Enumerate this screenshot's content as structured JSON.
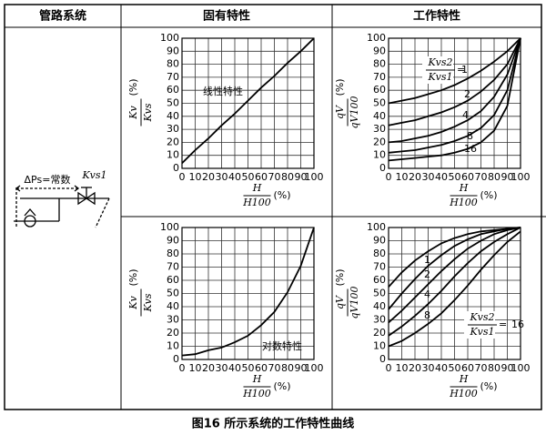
{
  "table": {
    "headers": [
      "管路系统",
      "固有特性",
      "工作特性"
    ]
  },
  "pipe_system": {
    "pressure_label": "ΔPs=常数",
    "valve_label": "Kvs1"
  },
  "chart_data": [
    {
      "type": "line",
      "x": [
        0,
        10,
        20,
        30,
        40,
        50,
        60,
        70,
        80,
        90,
        100
      ],
      "series": [
        {
          "color": "#000000",
          "values": [
            4,
            14,
            23,
            33,
            42,
            52,
            62,
            71,
            81,
            90,
            100
          ]
        }
      ],
      "xlim": [
        0,
        100
      ],
      "ylim": [
        0,
        100
      ],
      "xticks": [
        0,
        10,
        20,
        30,
        40,
        50,
        60,
        70,
        80,
        90,
        100
      ],
      "yticks": [
        0,
        10,
        20,
        30,
        40,
        50,
        60,
        70,
        80,
        90,
        100
      ],
      "grid": true,
      "xlabel": {
        "numerator": "H",
        "denominator": "H100",
        "unit": "(%)"
      },
      "ylabel": {
        "numerator": "Kv",
        "denominator": "Kvs",
        "unit": "(%)"
      },
      "annotation": "线性特性"
    },
    {
      "type": "line",
      "x": [
        0,
        10,
        20,
        30,
        40,
        50,
        60,
        70,
        80,
        90,
        100
      ],
      "series": [
        {
          "color": "#000000",
          "values": [
            3,
            4,
            7,
            9,
            13,
            18,
            26,
            36,
            51,
            71,
            100
          ]
        }
      ],
      "xlim": [
        0,
        100
      ],
      "ylim": [
        0,
        100
      ],
      "xticks": [
        0,
        10,
        20,
        30,
        40,
        50,
        60,
        70,
        80,
        90,
        100
      ],
      "yticks": [
        0,
        10,
        20,
        30,
        40,
        50,
        60,
        70,
        80,
        90,
        100
      ],
      "grid": true,
      "xlabel": {
        "numerator": "H",
        "denominator": "H100",
        "unit": "(%)"
      },
      "ylabel": {
        "numerator": "Kv",
        "denominator": "Kvs",
        "unit": "(%)"
      },
      "annotation": "对数特性"
    },
    {
      "type": "line",
      "x": [
        0,
        10,
        20,
        30,
        40,
        50,
        60,
        70,
        80,
        90,
        100
      ],
      "series": [
        {
          "name": "1",
          "color": "#000000",
          "values": [
            50,
            52,
            54,
            57,
            60,
            64,
            69,
            75,
            82,
            90,
            100
          ]
        },
        {
          "name": "2",
          "color": "#000000",
          "values": [
            33,
            35,
            37,
            40,
            43,
            47,
            52,
            59,
            68,
            80,
            100
          ]
        },
        {
          "name": "4",
          "color": "#000000",
          "values": [
            20,
            21,
            23,
            25,
            28,
            32,
            37,
            44,
            55,
            72,
            100
          ]
        },
        {
          "name": "8",
          "color": "#000000",
          "values": [
            12,
            13,
            14,
            16,
            18,
            21,
            25,
            31,
            41,
            60,
            100
          ]
        },
        {
          "name": "16",
          "color": "#000000",
          "values": [
            6,
            7,
            8,
            9,
            10,
            12,
            15,
            20,
            29,
            48,
            100
          ]
        }
      ],
      "xlim": [
        0,
        100
      ],
      "ylim": [
        0,
        100
      ],
      "xticks": [
        0,
        10,
        20,
        30,
        40,
        50,
        60,
        70,
        80,
        90,
        100
      ],
      "yticks": [
        0,
        10,
        20,
        30,
        40,
        50,
        60,
        70,
        80,
        90,
        100
      ],
      "grid": true,
      "xlabel": {
        "numerator": "H",
        "denominator": "H100",
        "unit": "(%)"
      },
      "ylabel": {
        "numerator": "qV",
        "denominator": "qV100",
        "unit": "(%)"
      },
      "annotation": {
        "numerator": "Kvs2",
        "denominator": "Kvs1",
        "relation": "="
      }
    },
    {
      "type": "line",
      "x": [
        0,
        10,
        20,
        30,
        40,
        50,
        60,
        70,
        80,
        90,
        100
      ],
      "series": [
        {
          "name": "1",
          "color": "#000000",
          "values": [
            55,
            66,
            75,
            82,
            88,
            92,
            95,
            97,
            98,
            99,
            100
          ]
        },
        {
          "name": "2",
          "color": "#000000",
          "values": [
            38,
            50,
            61,
            71,
            79,
            86,
            91,
            95,
            97,
            99,
            100
          ]
        },
        {
          "name": "4",
          "color": "#000000",
          "values": [
            28,
            37,
            47,
            57,
            67,
            76,
            84,
            90,
            95,
            98,
            100
          ]
        },
        {
          "name": "8",
          "color": "#000000",
          "values": [
            18,
            25,
            33,
            42,
            52,
            63,
            73,
            82,
            89,
            95,
            100
          ]
        },
        {
          "name": "16",
          "color": "#000000",
          "values": [
            10,
            14,
            20,
            27,
            35,
            45,
            56,
            68,
            79,
            89,
            97
          ]
        }
      ],
      "xlim": [
        0,
        100
      ],
      "ylim": [
        0,
        100
      ],
      "xticks": [
        0,
        10,
        20,
        30,
        40,
        50,
        60,
        70,
        80,
        90,
        100
      ],
      "yticks": [
        0,
        10,
        20,
        30,
        40,
        50,
        60,
        70,
        80,
        90,
        100
      ],
      "grid": true,
      "xlabel": {
        "numerator": "H",
        "denominator": "H100",
        "unit": "(%)"
      },
      "ylabel": {
        "numerator": "qV",
        "denominator": "qV100",
        "unit": "(%)"
      },
      "annotation": {
        "numerator": "Kvs2",
        "denominator": "Kvs1",
        "relation": "="
      }
    }
  ],
  "caption": "图16 所示系统的工作特性曲线"
}
